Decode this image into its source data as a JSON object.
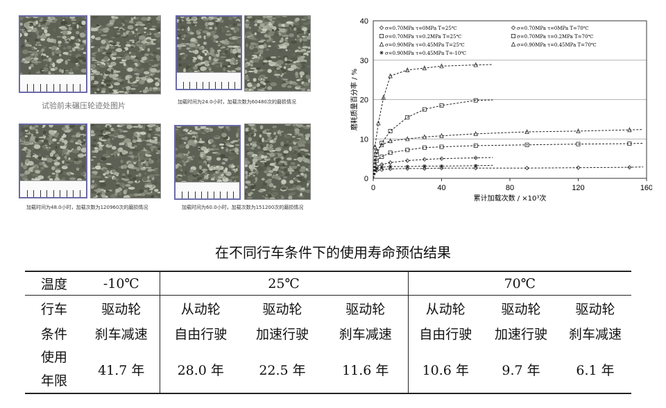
{
  "photos": {
    "caption_1": "试验前未碾压轮迹处图片",
    "caption_2": "加载时间为24.0小时，加载次数为60480次的磨损情况",
    "caption_3": "加载时间为48.0小时，加载次数为120960次的磨损情况",
    "caption_4": "加载时间为60.0小时，加载次数为151200次的磨损情况"
  },
  "chart_data": {
    "type": "scatter",
    "xlabel": "累计加载次数 / ×10³次",
    "ylabel": "磨耗质量百分率 / %",
    "xlim": [
      0,
      160
    ],
    "ylim": [
      0,
      40
    ],
    "xticks": [
      "0",
      "40",
      "80",
      "120",
      "160"
    ],
    "yticks": [
      "0",
      "10",
      "20",
      "30",
      "40"
    ],
    "grid": "horizontal",
    "legend_position": "top",
    "series": [
      {
        "name": "σ=0.70MPa τ=0MPa T=25℃",
        "marker": "diamond",
        "x": [
          2,
          5,
          10,
          20,
          30,
          40,
          60,
          90,
          120,
          150
        ],
        "y": [
          2.0,
          2.2,
          2.4,
          2.5,
          2.5,
          2.6,
          2.6,
          2.6,
          2.7,
          2.8
        ]
      },
      {
        "name": "σ=0.70MPa τ=0MPa T=70℃",
        "marker": "diamond",
        "x": [
          2,
          5,
          10,
          20,
          30,
          40,
          60
        ],
        "y": [
          3.0,
          3.5,
          4.0,
          4.5,
          4.8,
          5.0,
          5.2
        ]
      },
      {
        "name": "σ=0.70MPa τ=0.2MPa T=25℃",
        "marker": "square",
        "x": [
          2,
          5,
          10,
          20,
          30,
          40,
          60
        ],
        "y": [
          6.0,
          9.0,
          12.0,
          15.5,
          17.5,
          18.5,
          19.8
        ]
      },
      {
        "name": "σ=0.70MPa τ=0.2MPa T=70℃",
        "marker": "square",
        "x": [
          2,
          5,
          10,
          20,
          30,
          40,
          60,
          90,
          120,
          150
        ],
        "y": [
          4.5,
          5.5,
          6.5,
          7.2,
          7.8,
          8.0,
          8.3,
          8.5,
          8.7,
          8.8
        ]
      },
      {
        "name": "σ=0.90MPa τ=0.45MPa T=25℃",
        "marker": "triangle",
        "x": [
          1,
          3,
          6,
          10,
          20,
          30,
          40,
          60
        ],
        "y": [
          8.0,
          14.0,
          20.5,
          26.0,
          27.5,
          28.0,
          28.5,
          28.8
        ]
      },
      {
        "name": "σ=0.90MPa τ=0.45MPa T=70℃",
        "marker": "triangle",
        "x": [
          2,
          5,
          10,
          20,
          30,
          40,
          60,
          90,
          120,
          150
        ],
        "y": [
          7.0,
          8.5,
          9.5,
          10.0,
          10.5,
          10.8,
          11.3,
          11.8,
          12.0,
          12.3
        ]
      },
      {
        "name": "σ=0.90MPa τ=0.45MPa T=-10℃",
        "marker": "star",
        "x": [
          2,
          5,
          10,
          20,
          30,
          40,
          60
        ],
        "y": [
          2.5,
          2.8,
          3.0,
          3.0,
          3.1,
          3.1,
          3.2
        ]
      }
    ]
  },
  "table": {
    "title": "在不同行车条件下的使用寿命预估结果",
    "temp_label": "温度",
    "temp_m10": "-10℃",
    "temp_25": "25℃",
    "temp_70": "70℃",
    "cond_label_1": "行车",
    "cond_label_2": "条件",
    "life_label_1": "使用",
    "life_label_2": "年限",
    "columns": [
      {
        "wheel": "驱动轮",
        "mode": "刹车减速",
        "years": "41.7 年"
      },
      {
        "wheel": "从动轮",
        "mode": "自由行驶",
        "years": "28.0 年"
      },
      {
        "wheel": "驱动轮",
        "mode": "加速行驶",
        "years": "22.5 年"
      },
      {
        "wheel": "驱动轮",
        "mode": "刹车减速",
        "years": "11.6 年"
      },
      {
        "wheel": "从动轮",
        "mode": "自由行驶",
        "years": "10.6 年"
      },
      {
        "wheel": "驱动轮",
        "mode": "加速行驶",
        "years": "9.7 年"
      },
      {
        "wheel": "驱动轮",
        "mode": "刹车减速",
        "years": "6.1 年"
      }
    ]
  }
}
